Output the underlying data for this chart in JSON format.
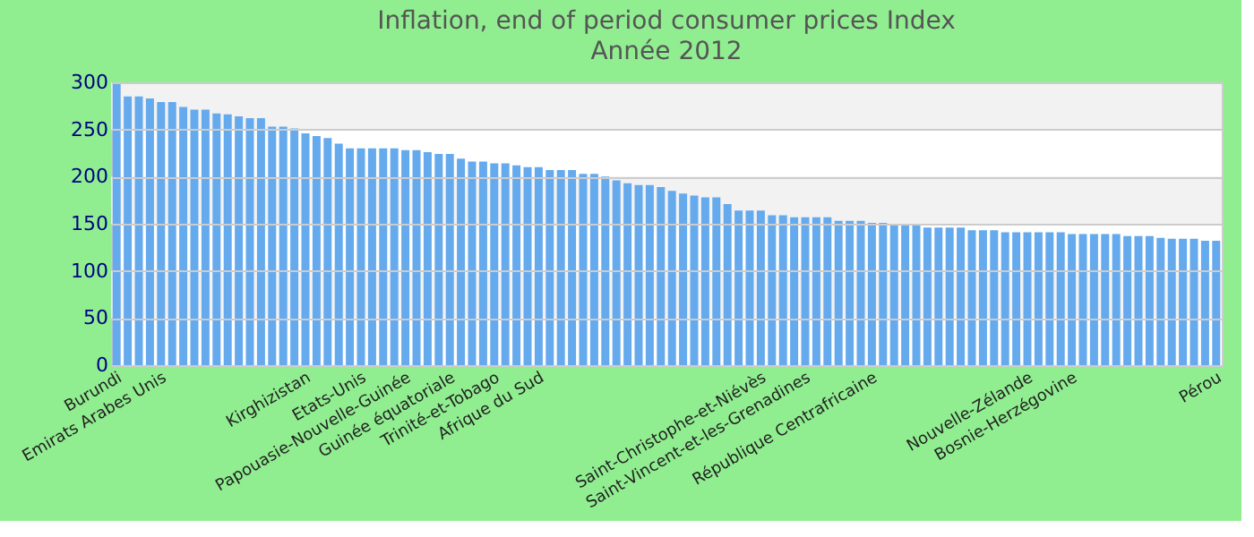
{
  "chart_data": {
    "type": "bar",
    "title": "Inflation, end of period consumer prices  Index",
    "subtitle": "Année 2012",
    "categories": [
      "Burundi",
      null,
      null,
      null,
      "Emirats Arabes Unis",
      null,
      null,
      null,
      null,
      null,
      null,
      null,
      null,
      null,
      null,
      null,
      null,
      "Kirghizistan",
      null,
      null,
      null,
      null,
      "Etats-Unis",
      null,
      null,
      null,
      "Papouasie-Nouvelle-Guinée",
      null,
      null,
      null,
      "Guinée équatoriale",
      null,
      null,
      null,
      "Trinité-et-Tobago",
      null,
      null,
      null,
      "Afrique du Sud",
      null,
      null,
      null,
      null,
      null,
      null,
      null,
      null,
      null,
      null,
      null,
      null,
      null,
      null,
      null,
      null,
      null,
      null,
      null,
      "Saint-Christophe-et-Niévès",
      null,
      null,
      null,
      "Saint-Vincent-et-les-Grenadines",
      null,
      null,
      null,
      null,
      null,
      "République Centrafricaine",
      null,
      null,
      null,
      null,
      null,
      null,
      null,
      null,
      null,
      null,
      null,
      null,
      null,
      "Nouvelle-Zélande",
      null,
      null,
      null,
      "Bosnie-Herzégovine",
      null,
      null,
      null,
      null,
      null,
      null,
      null,
      null,
      null,
      null,
      null,
      null,
      "Pérou"
    ],
    "values": [
      298,
      285,
      285,
      283,
      279,
      279,
      274,
      271,
      271,
      267,
      266,
      264,
      262,
      262,
      253,
      253,
      251,
      246,
      243,
      241,
      235,
      230,
      230,
      230,
      230,
      230,
      228,
      228,
      226,
      224,
      224,
      219,
      216,
      216,
      214,
      214,
      212,
      210,
      210,
      207,
      207,
      207,
      203,
      203,
      200,
      196,
      193,
      191,
      191,
      189,
      185,
      182,
      180,
      178,
      178,
      171,
      164,
      164,
      164,
      159,
      159,
      157,
      157,
      157,
      157,
      153,
      153,
      153,
      151,
      151,
      150,
      148,
      148,
      146,
      146,
      146,
      146,
      143,
      143,
      143,
      141,
      141,
      141,
      141,
      141,
      141,
      139,
      139,
      139,
      139,
      139,
      137,
      137,
      137,
      135,
      134,
      134,
      134,
      132,
      132
    ],
    "color": "#66aaee",
    "ylim": [
      0,
      300
    ],
    "yticks": [
      0,
      50,
      100,
      150,
      200,
      250,
      300
    ],
    "grid": "y"
  }
}
